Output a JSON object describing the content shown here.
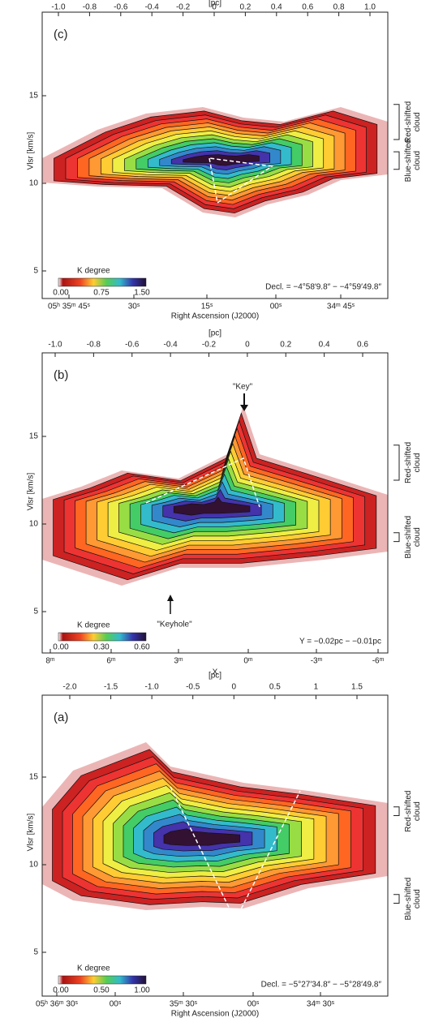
{
  "panels": [
    {
      "label": "(c)",
      "top_axis_label": "[pc]",
      "top_ticks": [
        "-1.0",
        "-0.8",
        "-0.6",
        "-0.4",
        "-0.2",
        "0",
        "0.2",
        "0.4",
        "0.6",
        "0.8",
        "1.0"
      ],
      "y_axis_label": "Vlsr [km/s]",
      "y_ticks": [
        15,
        10,
        5
      ],
      "bottom_ticks": [
        "05ʰ 35ᵐ 45ˢ",
        "30ˢ",
        "15ˢ",
        "00ˢ",
        "34ᵐ 45ˢ"
      ],
      "bottom_axis_label": "Right Ascension (J2000)",
      "colorbar_title": "K degree",
      "colorbar_ticks": [
        "0.00",
        "0.75",
        "1.50"
      ],
      "annotation": "Decl. = −4°58′9.8″ − −4°59′49.8″",
      "red_label": [
        "Red-shifted",
        "cloud"
      ],
      "blue_label": [
        "Blue-shifted",
        "cloud"
      ]
    },
    {
      "label": "(b)",
      "top_axis_label": "[pc]",
      "top_ticks": [
        "-1.0",
        "-0.8",
        "-0.6",
        "-0.4",
        "-0.2",
        "0",
        "0.2",
        "0.4",
        "0.6"
      ],
      "y_axis_label": "Vlsr [km/s]",
      "y_ticks": [
        15,
        10,
        5
      ],
      "bottom_ticks": [
        "8ᵐ",
        "6ᵐ",
        "3ᵐ",
        "0ᵐ",
        "-3ᵐ",
        "-6ᵐ"
      ],
      "bottom_axis_label": "X",
      "colorbar_title": "K degree",
      "colorbar_ticks": [
        "0.00",
        "0.30",
        "0.60"
      ],
      "annotation": "Y = −0.02pc − −0.01pc",
      "key_label": "\"Key\"",
      "keyhole_label": "\"Keyhole\"",
      "red_label": [
        "Red-shifted",
        "cloud"
      ],
      "blue_label": [
        "Blue-shifted",
        "cloud"
      ]
    },
    {
      "label": "(a)",
      "top_axis_label": "[pc]",
      "top_ticks": [
        "-2.0",
        "-1.5",
        "-1.0",
        "-0.5",
        "0",
        "0.5",
        "1",
        "1.5"
      ],
      "y_axis_label": "Vlsr [km/s]",
      "y_ticks": [
        15,
        10,
        5
      ],
      "bottom_ticks": [
        "05ʰ 36ᵐ 30ˢ",
        "00ˢ",
        "35ᵐ 30ˢ",
        "00ˢ",
        "34ᵐ 30ˢ"
      ],
      "bottom_axis_label": "Right Ascension (J2000)",
      "colorbar_title": "K degree",
      "colorbar_ticks": [
        "0.00",
        "0.50",
        "1.00"
      ],
      "annotation": "Decl. = −5°27′34.8″ − −5°28′49.8″",
      "red_label": [
        "Red-shifted",
        "cloud"
      ],
      "blue_label": [
        "Blue-shifted",
        "cloud"
      ]
    }
  ]
}
